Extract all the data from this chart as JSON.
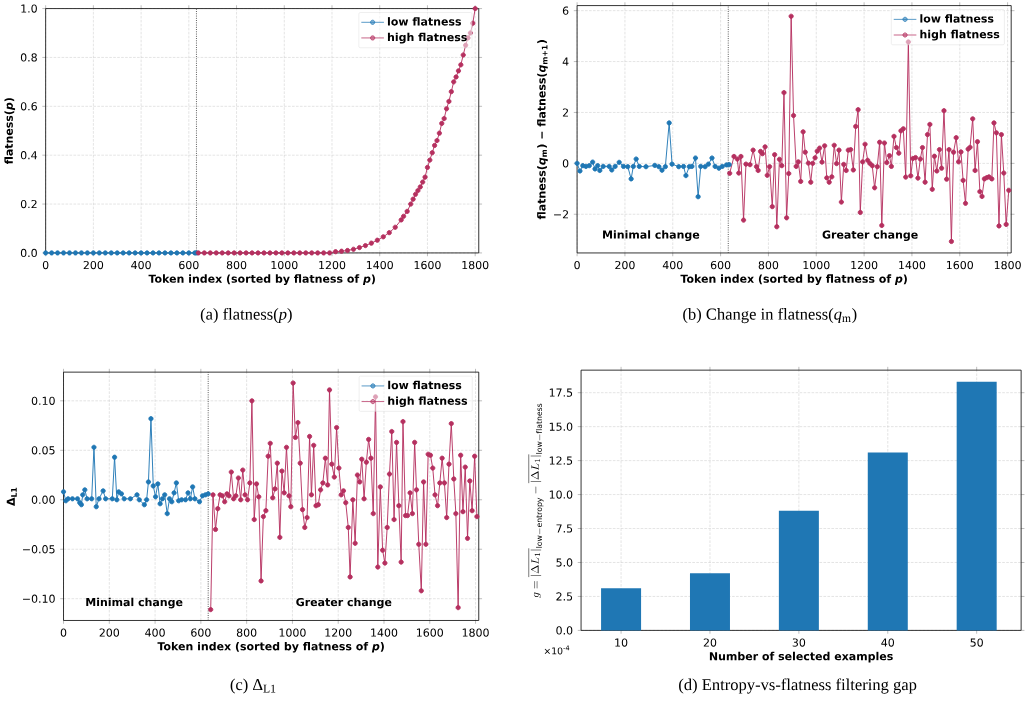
{
  "chart_data": [
    {
      "type": "line",
      "xlabel": "Token index (sorted by flatness of *p*)",
      "ylabel": "flatness(*p*)",
      "xlim": [
        0,
        1815
      ],
      "ylim": [
        0,
        1
      ],
      "xticks": [
        0,
        200,
        400,
        600,
        800,
        1000,
        1200,
        1400,
        1600,
        1800
      ],
      "yticks": [
        {
          "value": 0,
          "label": "0.0"
        },
        {
          "value": 0.2,
          "label": "0.2"
        },
        {
          "value": 0.4,
          "label": "0.4"
        },
        {
          "value": 0.6,
          "label": "0.6"
        },
        {
          "value": 0.8,
          "label": "0.8"
        },
        {
          "value": 1,
          "label": "1.0"
        }
      ],
      "grid": true,
      "legend": "top right",
      "marker": "circle",
      "line_style": "solid",
      "ref_lines": [
        {
          "axis": "x",
          "value": 632,
          "color": "#444444",
          "line_style": "dotted"
        }
      ],
      "annotations": [
        "(a) flatness(*p*)"
      ],
      "series": [
        {
          "name": "low flatness",
          "color": "#1f77b4",
          "x": [
            0,
            25,
            50,
            75,
            100,
            125,
            150,
            175,
            200,
            225,
            250,
            275,
            300,
            325,
            350,
            375,
            400,
            425,
            450,
            475,
            500,
            525,
            550,
            575,
            600,
            625,
            632
          ],
          "values": [
            0,
            0,
            0,
            0,
            0,
            0,
            0,
            0,
            0,
            0,
            0,
            0,
            0,
            0,
            0,
            0,
            0,
            0,
            0,
            0,
            0,
            0,
            0,
            0,
            0,
            0,
            0
          ]
        },
        {
          "name": "high flatness",
          "color": "#b5305f",
          "x": [
            640,
            665,
            690,
            715,
            740,
            765,
            790,
            815,
            840,
            865,
            890,
            915,
            940,
            965,
            990,
            1015,
            1040,
            1065,
            1090,
            1115,
            1140,
            1165,
            1190,
            1215,
            1240,
            1265,
            1290,
            1315,
            1340,
            1365,
            1390,
            1415,
            1440,
            1465,
            1490,
            1500,
            1515,
            1530,
            1540,
            1550,
            1560,
            1570,
            1580,
            1590,
            1600,
            1610,
            1620,
            1630,
            1640,
            1650,
            1660,
            1670,
            1680,
            1690,
            1700,
            1710,
            1720,
            1730,
            1740,
            1750,
            1760,
            1770,
            1780,
            1790,
            1800
          ],
          "values": [
            0,
            0,
            0,
            0,
            0,
            0,
            0,
            0,
            0,
            0,
            0,
            0,
            0,
            0,
            0,
            0,
            0,
            0,
            0,
            0,
            0,
            0,
            0,
            0.005,
            0.007,
            0.01,
            0.015,
            0.022,
            0.03,
            0.04,
            0.052,
            0.066,
            0.083,
            0.105,
            0.135,
            0.15,
            0.17,
            0.2,
            0.22,
            0.24,
            0.255,
            0.27,
            0.29,
            0.31,
            0.35,
            0.38,
            0.41,
            0.44,
            0.46,
            0.49,
            0.53,
            0.55,
            0.59,
            0.62,
            0.66,
            0.7,
            0.72,
            0.745,
            0.77,
            0.81,
            0.85,
            0.88,
            0.9,
            0.94,
            1.0
          ]
        }
      ]
    },
    {
      "type": "line",
      "xlabel": "Token index (sorted by flatness of *p*)",
      "ylabel": "flatness(*q*$_{m}$) − flatness(*q*$_{m+1}$)",
      "xlim": [
        0,
        1815
      ],
      "ylim": [
        -3.52,
        6.2
      ],
      "xticks": [
        0,
        200,
        400,
        600,
        800,
        1000,
        1200,
        1400,
        1600,
        1800
      ],
      "yticks": [
        {
          "value": -2,
          "label": "−2"
        },
        0,
        2,
        4,
        6
      ],
      "grid": true,
      "legend": "top right",
      "marker": "circle",
      "line_style": "solid",
      "ref_lines": [
        {
          "axis": "x",
          "value": 632,
          "color": "#444444",
          "line_style": "dotted"
        }
      ],
      "annotations": [
        "Minimal change",
        "Greater change",
        "(b) Change in flatness(*q*$_{m}$)"
      ],
      "series": [
        {
          "name": "low flatness",
          "color": "#1f77b4",
          "x": [
            0,
            12,
            24,
            37,
            51,
            65,
            75,
            86,
            95,
            109,
            134,
            145,
            159,
            176,
            194,
            212,
            226,
            235,
            247,
            260,
            288,
            325,
            342,
            355,
            369,
            385,
            397,
            425,
            445,
            455,
            469,
            480,
            495,
            506,
            517,
            535,
            549,
            564,
            577,
            593,
            607,
            625,
            636
          ],
          "values": [
            0.0,
            -0.3,
            -0.09,
            -0.12,
            -0.09,
            0.05,
            -0.22,
            -0.09,
            -0.28,
            -0.12,
            -0.12,
            -0.26,
            -0.12,
            0.04,
            -0.12,
            -0.13,
            -0.61,
            -0.12,
            0.17,
            -0.12,
            -0.13,
            -0.08,
            -0.13,
            -0.27,
            -0.13,
            1.59,
            -0.03,
            -0.13,
            -0.12,
            -0.48,
            -0.13,
            -0.12,
            0.21,
            -1.31,
            -0.12,
            -0.13,
            -0.03,
            0.21,
            -0.12,
            -0.19,
            -0.12,
            -0.06,
            -0.05
          ]
        },
        {
          "name": "high flatness",
          "color": "#b5305f",
          "x": [
            638,
            656,
            670,
            676,
            685,
            696,
            706,
            723,
            736,
            750,
            757,
            767,
            775,
            786,
            795,
            805,
            816,
            826,
            835,
            846,
            856,
            865,
            876,
            885,
            895,
            905,
            916,
            925,
            935,
            945,
            954,
            967,
            977,
            985,
            995,
            1004,
            1014,
            1024,
            1035,
            1044,
            1054,
            1065,
            1075,
            1085,
            1095,
            1105,
            1115,
            1125,
            1134,
            1144,
            1155,
            1165,
            1175,
            1184,
            1194,
            1204,
            1215,
            1224,
            1234,
            1244,
            1255,
            1265,
            1274,
            1285,
            1295,
            1306,
            1314,
            1325,
            1335,
            1345,
            1354,
            1364,
            1374,
            1385,
            1395,
            1404,
            1415,
            1425,
            1435,
            1444,
            1455,
            1465,
            1475,
            1485,
            1494,
            1504,
            1515,
            1524,
            1534,
            1545,
            1555,
            1565,
            1574,
            1585,
            1595,
            1605,
            1614,
            1624,
            1635,
            1643,
            1654,
            1664,
            1674,
            1684,
            1693,
            1703,
            1713,
            1722,
            1734,
            1743,
            1753,
            1764,
            1774,
            1784,
            1794,
            1805
          ],
          "values": [
            -0.39,
            0.27,
            0.17,
            -0.38,
            0.27,
            -2.23,
            -0.03,
            -0.05,
            0.52,
            -0.13,
            -0.28,
            0.47,
            0.38,
            0.65,
            -0.47,
            -0.13,
            -1.7,
            0.34,
            -2.49,
            0.16,
            -0.09,
            2.78,
            -2.14,
            -0.4,
            5.78,
            1.88,
            -0.12,
            0.06,
            -0.71,
            1.24,
            0.44,
            0.01,
            -0.74,
            0.0,
            0.22,
            0.48,
            0.6,
            0.05,
            0.69,
            -0.57,
            -0.74,
            -0.53,
            0.71,
            -0.01,
            0.52,
            -1.52,
            -0.04,
            -0.28,
            0.52,
            0.54,
            -0.26,
            1.45,
            2.11,
            -1.93,
            0.06,
            0.75,
            0.12,
            0.0,
            -0.09,
            -0.96,
            -0.13,
            0.83,
            -2.44,
            0.8,
            0.03,
            0.3,
            -0.12,
            1.06,
            0.62,
            0.4,
            1.28,
            1.36,
            -0.54,
            4.77,
            -0.49,
            0.19,
            0.23,
            -0.58,
            0.17,
            0.62,
            -0.74,
            1.13,
            1.53,
            -1.02,
            0.28,
            -0.3,
            0.54,
            -0.19,
            2.07,
            -0.62,
            0.54,
            -3.07,
            0.44,
            1.01,
            0.06,
            0.45,
            -0.67,
            -1.57,
            0.56,
            0.63,
            1.75,
            -0.28,
            0.85,
            -1.11,
            -1.3,
            -0.61,
            -0.56,
            -0.53,
            -0.61,
            1.59,
            1.2,
            -2.46,
            1.13,
            -0.38,
            -2.4,
            -1.06
          ]
        }
      ]
    },
    {
      "type": "line",
      "xlabel": "Token index (sorted by flatness of *p*)",
      "ylabel": "Δ$_{L1}$",
      "xlim": [
        0,
        1814
      ],
      "ylim": [
        -0.122,
        0.129
      ],
      "xticks": [
        0,
        200,
        400,
        600,
        800,
        1000,
        1200,
        1400,
        1600,
        1800
      ],
      "yticks": [
        {
          "value": -0.1,
          "label": "−0.10"
        },
        {
          "value": -0.05,
          "label": "−0.05"
        },
        {
          "value": 0,
          "label": "0.00"
        },
        {
          "value": 0.05,
          "label": "0.05"
        },
        {
          "value": 0.1,
          "label": "0.10"
        }
      ],
      "grid": true,
      "legend": "top right",
      "marker": "circle",
      "line_style": "solid",
      "ref_lines": [
        {
          "axis": "x",
          "value": 632,
          "color": "#444444",
          "line_style": "dotted"
        }
      ],
      "annotations": [
        "Minimal change",
        "Greater change",
        "(c) Δ$_{L1}$"
      ],
      "series": [
        {
          "name": "low flatness",
          "color": "#1f77b4",
          "x": [
            0,
            10,
            20,
            39,
            61,
            71,
            78,
            84,
            93,
            103,
            123,
            133,
            143,
            155,
            173,
            184,
            213,
            223,
            233,
            241,
            253,
            265,
            292,
            321,
            331,
            353,
            363,
            371,
            382,
            392,
            402,
            412,
            422,
            432,
            442,
            453,
            463,
            473,
            483,
            493,
            503,
            516,
            533,
            544,
            554,
            564,
            574,
            594,
            607,
            620,
            632
          ],
          "values": [
            0.008,
            -0.001,
            0.001,
            0.001,
            0.001,
            -0.003,
            -0.005,
            0.005,
            0.01,
            0.001,
            0.001,
            0.053,
            -0.007,
            0.001,
            0.009,
            0.001,
            0.001,
            0.043,
            0.0,
            0.008,
            0.006,
            0.001,
            0.001,
            0.005,
            0.0,
            -0.005,
            0.0,
            0.018,
            0.082,
            0.014,
            0.003,
            0.016,
            -0.004,
            0.001,
            0.005,
            -0.014,
            0.001,
            -0.002,
            0.007,
            0.017,
            -0.001,
            0.0,
            0.0,
            0.007,
            0.001,
            0.013,
            0.001,
            -0.002,
            0.004,
            0.005,
            0.006
          ]
        },
        {
          "name": "high flatness",
          "color": "#b5305f",
          "x": [
            643,
            653,
            664,
            674,
            684,
            694,
            704,
            714,
            723,
            733,
            743,
            753,
            764,
            774,
            783,
            793,
            804,
            814,
            823,
            833,
            843,
            853,
            863,
            873,
            884,
            894,
            903,
            914,
            924,
            934,
            945,
            954,
            964,
            974,
            985,
            993,
            1003,
            1013,
            1024,
            1034,
            1044,
            1054,
            1064,
            1075,
            1083,
            1093,
            1103,
            1113,
            1123,
            1133,
            1144,
            1154,
            1162,
            1172,
            1183,
            1193,
            1203,
            1213,
            1223,
            1233,
            1244,
            1252,
            1264,
            1274,
            1284,
            1294,
            1303,
            1313,
            1323,
            1333,
            1343,
            1353,
            1363,
            1373,
            1384,
            1394,
            1404,
            1414,
            1424,
            1434,
            1444,
            1455,
            1465,
            1475,
            1483,
            1494,
            1503,
            1514,
            1524,
            1534,
            1542,
            1552,
            1563,
            1573,
            1583,
            1593,
            1603,
            1613,
            1623,
            1634,
            1644,
            1654,
            1664,
            1674,
            1684,
            1694,
            1705,
            1714,
            1724,
            1735,
            1745,
            1755,
            1765,
            1775,
            1785,
            1796,
            1806
          ],
          "values": [
            -0.111,
            0.005,
            -0.03,
            -0.009,
            0.005,
            0.004,
            -0.002,
            0.006,
            0.004,
            0.028,
            0.001,
            0.004,
            0.022,
            0.0,
            0.03,
            0.005,
            0.0,
            0.017,
            0.1,
            -0.02,
            0.016,
            0.003,
            -0.082,
            -0.017,
            -0.011,
            0.044,
            0.057,
            0.002,
            0.011,
            0.037,
            -0.038,
            0.029,
            0.007,
            0.053,
            0.004,
            -0.007,
            0.118,
            0.063,
            0.078,
            0.037,
            -0.01,
            -0.028,
            -0.018,
            0.064,
            0.005,
            0.055,
            -0.006,
            -0.005,
            0.01,
            0.017,
            0.042,
            0.015,
            0.111,
            0.036,
            0.023,
            0.073,
            0.032,
            0.005,
            0.009,
            -0.003,
            -0.028,
            -0.078,
            0.0,
            -0.044,
            0.025,
            0.018,
            0.041,
            0.001,
            0.038,
            0.061,
            0.042,
            -0.014,
            0.104,
            -0.068,
            0.013,
            -0.051,
            -0.064,
            -0.028,
            0.026,
            0.069,
            -0.02,
            0.058,
            -0.006,
            -0.063,
            0.079,
            -0.016,
            -0.016,
            0.007,
            -0.014,
            0.058,
            0.01,
            -0.045,
            -0.092,
            0.018,
            -0.045,
            0.046,
            0.045,
            0.032,
            0.005,
            -0.006,
            0.017,
            0.042,
            0.017,
            -0.018,
            0.036,
            0.077,
            0.021,
            -0.014,
            -0.109,
            0.045,
            -0.012,
            0.033,
            -0.039,
            0.019,
            -0.011,
            0.044,
            -0.017
          ]
        }
      ]
    },
    {
      "type": "bar",
      "xlabel": "Number of selected examples",
      "ylabel": "g = \\overline{|\\Delta L_1|}_{\\mathrm{low-entropy}} - \\overline{|\\Delta L_1|}_{\\mathrm{low-flatness}}",
      "categories": [
        "10",
        "20",
        "30",
        "40",
        "50"
      ],
      "values": [
        3.1,
        4.2,
        8.8,
        13.1,
        18.3
      ],
      "color": "#1f77b4",
      "ylim": [
        0,
        19.16
      ],
      "yticks": [
        {
          "value": 0,
          "label": "0.0"
        },
        {
          "value": 2.5,
          "label": "2.5"
        },
        {
          "value": 5,
          "label": "5.0"
        },
        {
          "value": 7.5,
          "label": "7.5"
        },
        {
          "value": 10,
          "label": "10.0"
        },
        {
          "value": 12.5,
          "label": "12.5"
        },
        {
          "value": 15,
          "label": "15.0"
        },
        {
          "value": 17.5,
          "label": "17.5"
        }
      ],
      "grid": true,
      "annotations": [
        "×10$^{-4}$",
        "(d) Entropy-vs-flatness filtering gap"
      ]
    }
  ]
}
